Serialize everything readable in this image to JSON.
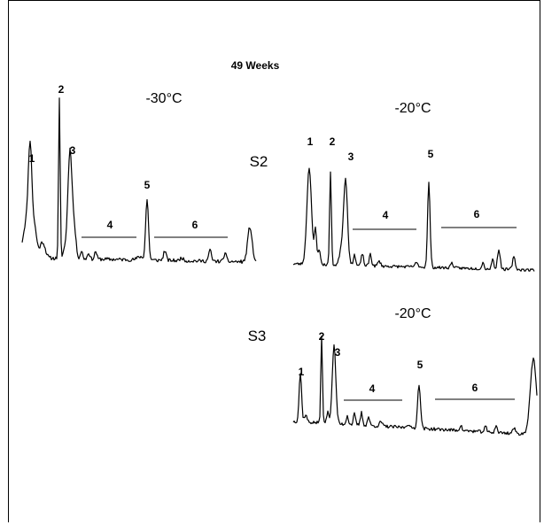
{
  "chart_data": {
    "type": "line",
    "title": "49 Weeks",
    "xlabel": "",
    "ylabel": "",
    "grid": false,
    "legend": "none",
    "panels": [
      {
        "id": "s2-minus30",
        "sample": "S2",
        "temperature": "-30°C",
        "peaks": [
          {
            "label": "1",
            "height": 0.58
          },
          {
            "label": "2",
            "height": 1.0
          },
          {
            "label": "3",
            "height": 0.68
          },
          {
            "label": "5",
            "height": 0.38
          }
        ],
        "regions": [
          {
            "label": "4"
          },
          {
            "label": "6"
          }
        ]
      },
      {
        "id": "s2-minus20",
        "sample": "S2",
        "temperature": "-20°C",
        "peaks": [
          {
            "label": "1",
            "height": 0.78
          },
          {
            "label": "2",
            "height": 0.75
          },
          {
            "label": "3",
            "height": 0.7
          },
          {
            "label": "5",
            "height": 0.68
          }
        ],
        "regions": [
          {
            "label": "4"
          },
          {
            "label": "6"
          }
        ]
      },
      {
        "id": "s3-minus20",
        "sample": "S3",
        "temperature": "-20°C",
        "peaks": [
          {
            "label": "1",
            "height": 0.55
          },
          {
            "label": "2",
            "height": 1.0
          },
          {
            "label": "3",
            "height": 0.88
          },
          {
            "label": "5",
            "height": 0.5
          }
        ],
        "regions": [
          {
            "label": "4"
          },
          {
            "label": "6"
          }
        ]
      }
    ]
  }
}
